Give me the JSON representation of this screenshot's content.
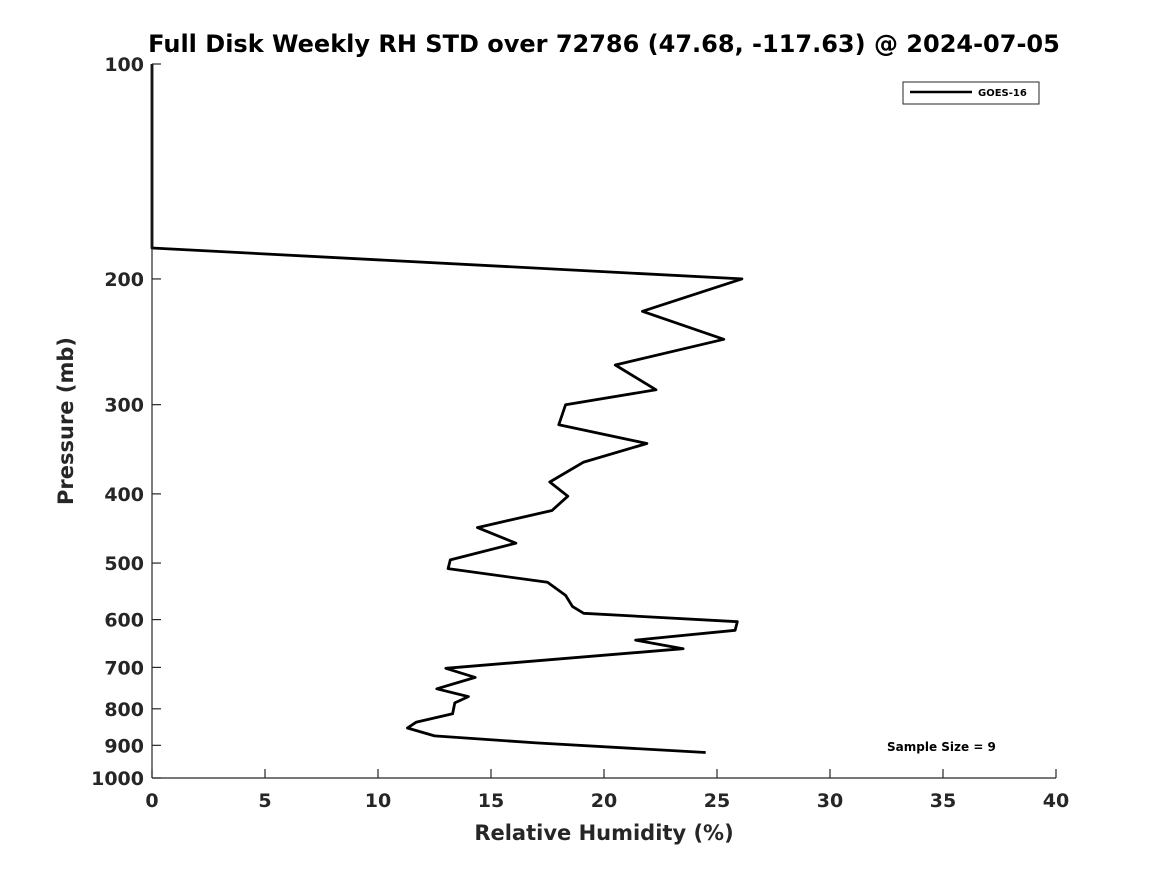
{
  "chart_data": {
    "type": "line",
    "title": "Full Disk Weekly RH STD over 72786 (47.68, -117.63) @ 2024-07-05",
    "xlabel": "Relative Humidity (%)",
    "ylabel": "Pressure (mb)",
    "xlim": [
      0,
      40
    ],
    "ylim": [
      100,
      1000
    ],
    "y_scale": "log",
    "y_reversed": true,
    "x_ticks": [
      "0",
      "5",
      "10",
      "15",
      "20",
      "25",
      "30",
      "35",
      "40"
    ],
    "y_ticks": [
      "100",
      "200",
      "300",
      "400",
      "500",
      "600",
      "700",
      "800",
      "900",
      "1000"
    ],
    "grid": false,
    "legend_position": "top-right",
    "annotation": "Sample Size = 9",
    "series": [
      {
        "name": "GOES-16",
        "color": "#000000",
        "points": [
          {
            "x": 0.0,
            "y": 100
          },
          {
            "x": 0.0,
            "y": 150
          },
          {
            "x": 0.0,
            "y": 175
          },
          {
            "x": 0.0,
            "y": 181
          },
          {
            "x": 26.1,
            "y": 200
          },
          {
            "x": 21.7,
            "y": 222
          },
          {
            "x": 25.3,
            "y": 243
          },
          {
            "x": 20.5,
            "y": 264
          },
          {
            "x": 22.3,
            "y": 286
          },
          {
            "x": 18.3,
            "y": 300
          },
          {
            "x": 18.0,
            "y": 320
          },
          {
            "x": 21.9,
            "y": 340
          },
          {
            "x": 19.1,
            "y": 361
          },
          {
            "x": 17.6,
            "y": 385
          },
          {
            "x": 18.4,
            "y": 403
          },
          {
            "x": 17.7,
            "y": 422
          },
          {
            "x": 14.4,
            "y": 446
          },
          {
            "x": 16.1,
            "y": 469
          },
          {
            "x": 13.2,
            "y": 495
          },
          {
            "x": 13.1,
            "y": 509
          },
          {
            "x": 17.5,
            "y": 532
          },
          {
            "x": 18.3,
            "y": 555
          },
          {
            "x": 18.6,
            "y": 575
          },
          {
            "x": 19.1,
            "y": 588
          },
          {
            "x": 25.9,
            "y": 604
          },
          {
            "x": 25.8,
            "y": 621
          },
          {
            "x": 21.4,
            "y": 641
          },
          {
            "x": 23.5,
            "y": 659
          },
          {
            "x": 13.0,
            "y": 702
          },
          {
            "x": 14.3,
            "y": 723
          },
          {
            "x": 12.6,
            "y": 750
          },
          {
            "x": 14.0,
            "y": 769
          },
          {
            "x": 13.4,
            "y": 785
          },
          {
            "x": 13.3,
            "y": 813
          },
          {
            "x": 11.7,
            "y": 835
          },
          {
            "x": 11.3,
            "y": 851
          },
          {
            "x": 12.5,
            "y": 873
          },
          {
            "x": 17.0,
            "y": 893
          },
          {
            "x": 24.5,
            "y": 921
          }
        ]
      }
    ]
  }
}
